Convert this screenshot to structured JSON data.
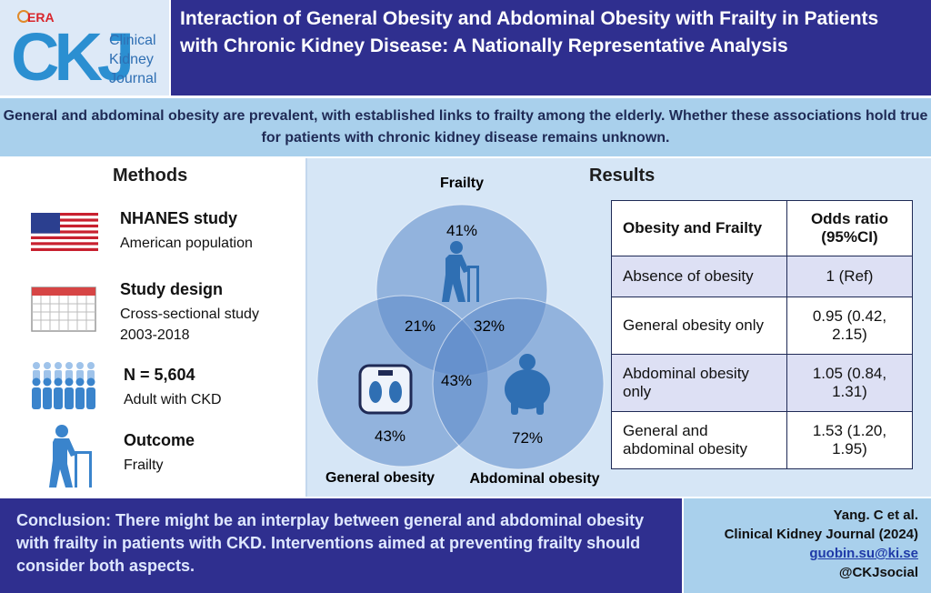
{
  "brand": {
    "era": "ERA",
    "ckj": "CKJ",
    "journal_lines": [
      "Clinical",
      "Kidney",
      "Journal"
    ],
    "accent": "#2f2f8f",
    "light": "#a9d0ec"
  },
  "header": {
    "title": "Interaction of General Obesity and Abdominal Obesity with Frailty in Patients with Chronic Kidney Disease: A Nationally Representative Analysis"
  },
  "intro": {
    "text": "General and abdominal obesity are prevalent, with established links to frailty among the elderly. Whether these associations hold true for patients with chronic kidney disease remains unknown."
  },
  "methods": {
    "title": "Methods",
    "items": [
      {
        "icon": "us-flag-icon",
        "heading": "NHANES study",
        "lines": [
          "American population"
        ]
      },
      {
        "icon": "calendar-icon",
        "heading": "Study design",
        "lines": [
          "Cross-sectional study",
          "2003-2018"
        ]
      },
      {
        "icon": "people-icon",
        "heading": "N = 5,604",
        "lines": [
          "Adult with CKD"
        ]
      },
      {
        "icon": "elderly-walker-icon",
        "heading": "Outcome",
        "lines": [
          "Frailty"
        ]
      }
    ]
  },
  "results": {
    "title": "Results",
    "venn": {
      "frailty_label": "Frailty",
      "general_label": "General obesity",
      "abdominal_label": "Abdominal obesity",
      "frailty_only": "41%",
      "frailty_general": "21%",
      "frailty_abdominal": "32%",
      "all_three": "43%",
      "general_only": "43%",
      "abdominal_only": "72%"
    },
    "table": {
      "headers": [
        "Obesity and Frailty",
        "Odds ratio (95%CI)"
      ],
      "rows": [
        {
          "group": "Absence of obesity",
          "or": "1 (Ref)"
        },
        {
          "group": "General obesity only",
          "or": "0.95 (0.42, 2.15)"
        },
        {
          "group": "Abdominal obesity only",
          "or": "1.05 (0.84, 1.31)"
        },
        {
          "group": "General and abdominal obesity",
          "or": "1.53 (1.20, 1.95)"
        }
      ]
    }
  },
  "conclusion": {
    "text": "Conclusion: There might be an interplay between general and abdominal obesity with frailty in patients with CKD. Interventions aimed at preventing frailty should consider both aspects."
  },
  "citation": {
    "authors": "Yang. C et al.",
    "journal": "Clinical Kidney Journal (2024)",
    "email": "guobin.su@ki.se",
    "social": "@CKJsocial"
  }
}
